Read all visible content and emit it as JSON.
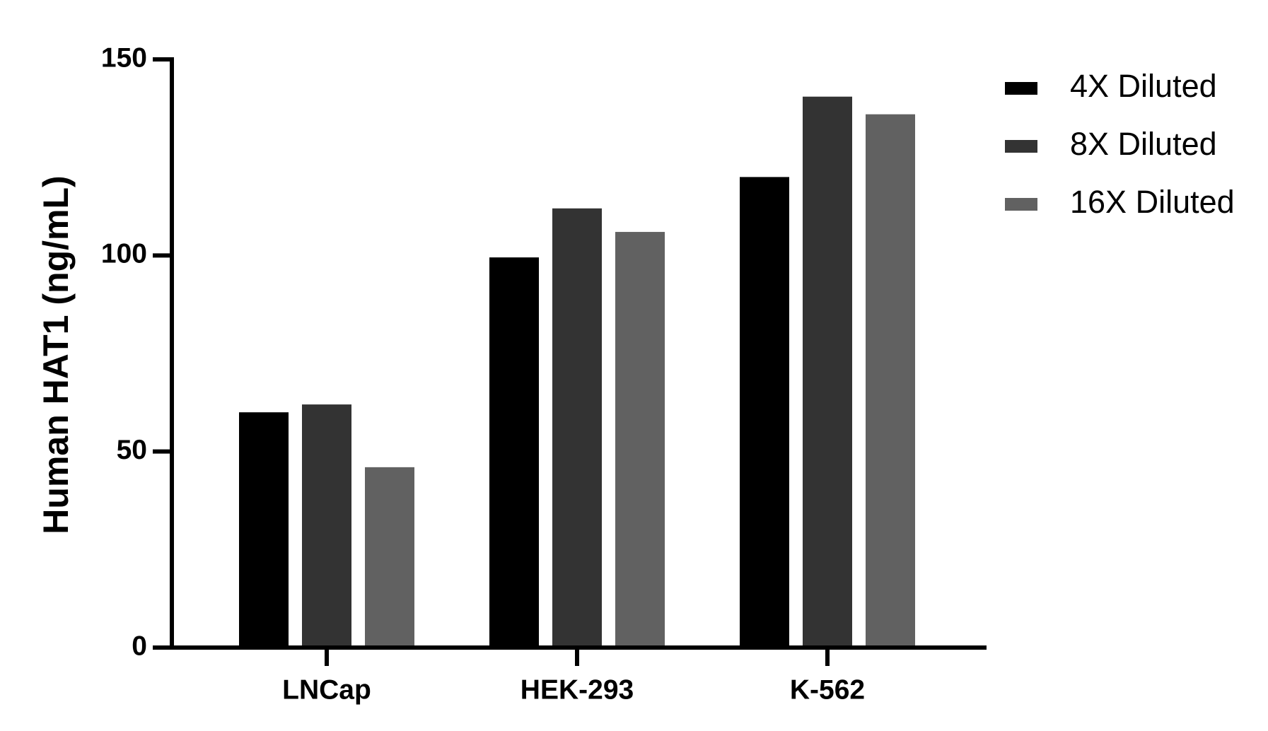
{
  "chart_data": {
    "type": "bar",
    "y_label": "Human HAT1 (ng/mL)",
    "categories": [
      "LNCap",
      "HEK-293",
      "K-562"
    ],
    "series": [
      {
        "name": "4X Diluted",
        "color": "#000000",
        "values": [
          60,
          99.5,
          120
        ]
      },
      {
        "name": "8X Diluted",
        "color": "#333333",
        "values": [
          62,
          112,
          140.5
        ]
      },
      {
        "name": "16X Diluted",
        "color": "#616161",
        "values": [
          46,
          106,
          136
        ]
      }
    ],
    "ylim": [
      0,
      150
    ],
    "yticks": [
      0,
      50,
      100,
      150
    ],
    "legend": "right"
  }
}
